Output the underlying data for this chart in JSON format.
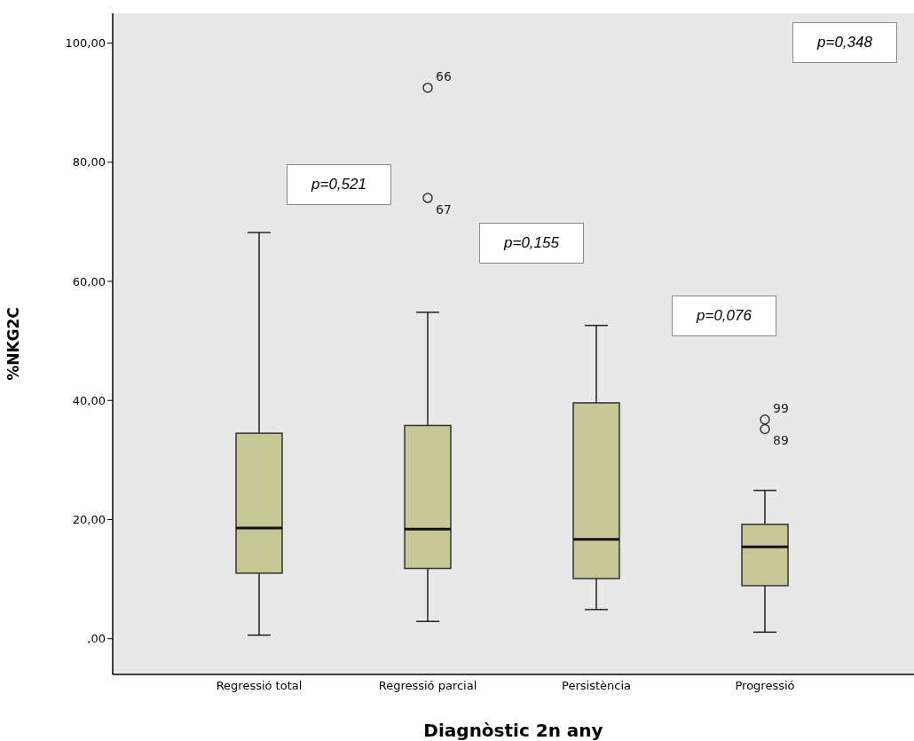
{
  "chart_data": {
    "type": "box",
    "xlabel": "Diagnòstic 2n any",
    "ylabel": "%NKG2C",
    "categories": [
      "Regressió total",
      "Regressió parcial",
      "Persistència",
      "Progressió"
    ],
    "color": "#c6c697",
    "boxes": [
      {
        "low": 0.6,
        "q1": 11.0,
        "median": 18.6,
        "q3": 34.5,
        "high": 68.2
      },
      {
        "low": 2.9,
        "q1": 11.8,
        "median": 18.4,
        "q3": 35.8,
        "high": 54.8,
        "outliers": [
          92.5,
          74.0
        ]
      },
      {
        "low": 4.9,
        "q1": 10.1,
        "median": 16.7,
        "q3": 39.6,
        "high": 52.6
      },
      {
        "low": 1.1,
        "q1": 8.9,
        "median": 15.4,
        "q3": 19.2,
        "high": 24.9,
        "outliers": [
          36.8,
          35.2
        ]
      }
    ],
    "ylim": [
      -6,
      105
    ],
    "yticks": [
      {
        "value": 0,
        "label": ",00"
      },
      {
        "value": 20,
        "label": "20,00"
      },
      {
        "value": 40,
        "label": "40,00"
      },
      {
        "value": 60,
        "label": "60,00"
      },
      {
        "value": 80,
        "label": "80,00"
      },
      {
        "value": 100,
        "label": "100,00"
      }
    ],
    "grid": false,
    "legend": false,
    "annotations": [
      "66",
      "67",
      "99",
      "89",
      "p=0,521",
      "p=0,155",
      "p=0,076",
      "p=0,348"
    ]
  }
}
